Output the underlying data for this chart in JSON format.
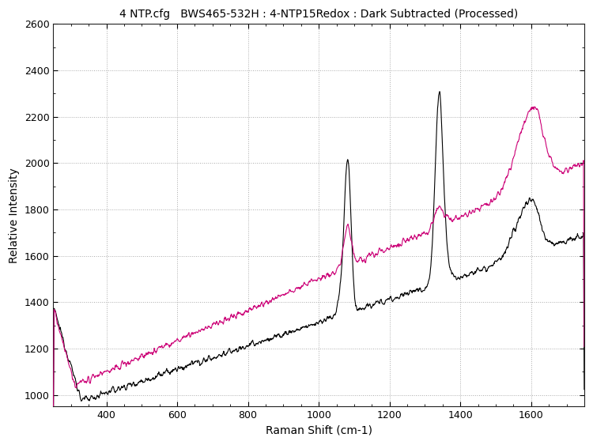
{
  "title": "4 NTP.cfg   BWS465-532H : 4-NTP15Redox : Dark Subtracted (Processed)",
  "xlabel": "Raman Shift (cm-1)",
  "ylabel": "Relative Intensity",
  "xlim": [
    250,
    1750
  ],
  "ylim": [
    950,
    2600
  ],
  "xticks": [
    400,
    600,
    800,
    1000,
    1200,
    1400,
    1600
  ],
  "yticks": [
    1000,
    1200,
    1400,
    1600,
    1800,
    2000,
    2200,
    2400,
    2600
  ],
  "background_color": "#ffffff",
  "grid_color": "#aaaaaa",
  "line1_color": "#000000",
  "line2_color": "#cc0077",
  "title_fontsize": 10,
  "label_fontsize": 10
}
